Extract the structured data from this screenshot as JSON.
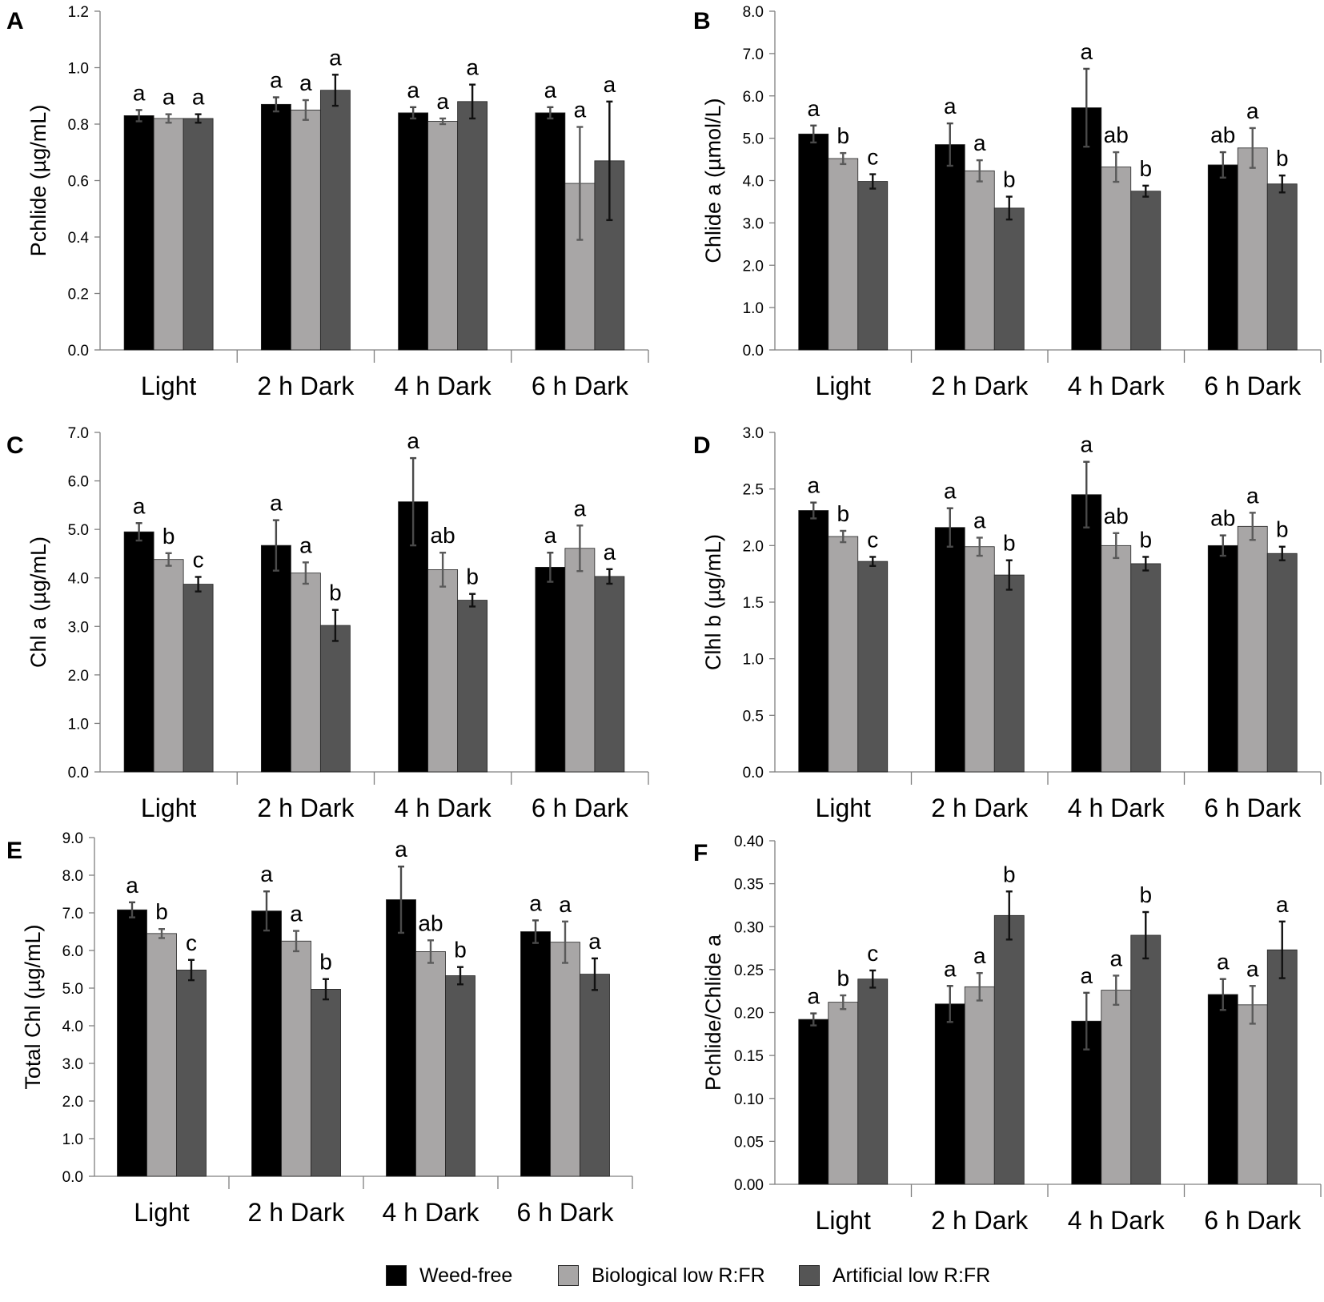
{
  "legend": {
    "series": [
      {
        "name": "Weed-free",
        "color": "#000000",
        "error_color": "#4a4a4a"
      },
      {
        "name": "Biological low R:FR",
        "color": "#a8a6a6",
        "error_color": "#5a5a5a"
      },
      {
        "name": "Artificial low R:FR",
        "color": "#555555",
        "error_color": "#111111"
      }
    ]
  },
  "chart_data": [
    {
      "panel": "A",
      "type": "bar",
      "ylabel": "Pchlide (µg/mL)",
      "categories": [
        "Light",
        "2 h Dark",
        "4 h Dark",
        "6 h Dark"
      ],
      "ylim": [
        0,
        1.2
      ],
      "yticks": [
        "0.0",
        "0.2",
        "0.4",
        "0.6",
        "0.8",
        "1.0",
        "1.2"
      ],
      "series": [
        {
          "name": "Weed-free",
          "values": [
            0.83,
            0.87,
            0.84,
            0.84
          ],
          "errors": [
            0.02,
            0.025,
            0.02,
            0.02
          ],
          "letters": [
            "a",
            "a",
            "a",
            "a"
          ]
        },
        {
          "name": "Biological low R:FR",
          "values": [
            0.82,
            0.85,
            0.81,
            0.59
          ],
          "errors": [
            0.015,
            0.035,
            0.01,
            0.2
          ],
          "letters": [
            "a",
            "a",
            "a",
            "a"
          ]
        },
        {
          "name": "Artificial low R:FR",
          "values": [
            0.82,
            0.92,
            0.88,
            0.67
          ],
          "errors": [
            0.015,
            0.055,
            0.06,
            0.21
          ],
          "letters": [
            "a",
            "a",
            "a",
            "a"
          ]
        }
      ]
    },
    {
      "panel": "B",
      "type": "bar",
      "ylabel": "Chlide a (µmol/L)",
      "categories": [
        "Light",
        "2 h Dark",
        "4 h Dark",
        "6 h Dark"
      ],
      "ylim": [
        0,
        8
      ],
      "yticks": [
        "0.0",
        "1.0",
        "2.0",
        "3.0",
        "4.0",
        "5.0",
        "6.0",
        "7.0",
        "8.0"
      ],
      "series": [
        {
          "name": "Weed-free",
          "values": [
            5.1,
            4.85,
            5.72,
            4.37
          ],
          "errors": [
            0.2,
            0.5,
            0.92,
            0.3
          ],
          "letters": [
            "a",
            "a",
            "a",
            "ab"
          ]
        },
        {
          "name": "Biological low R:FR",
          "values": [
            4.52,
            4.23,
            4.32,
            4.77
          ],
          "errors": [
            0.13,
            0.25,
            0.35,
            0.47
          ],
          "letters": [
            "b",
            "a",
            "ab",
            "a"
          ]
        },
        {
          "name": "Artificial low R:FR",
          "values": [
            3.98,
            3.35,
            3.75,
            3.92
          ],
          "errors": [
            0.17,
            0.27,
            0.13,
            0.2
          ],
          "letters": [
            "c",
            "b",
            "b",
            "b"
          ]
        }
      ]
    },
    {
      "panel": "C",
      "type": "bar",
      "ylabel": "Chl a (µg/mL)",
      "categories": [
        "Light",
        "2 h Dark",
        "4 h Dark",
        "6 h Dark"
      ],
      "ylim": [
        0,
        7
      ],
      "yticks": [
        "0.0",
        "1.0",
        "2.0",
        "3.0",
        "4.0",
        "5.0",
        "6.0",
        "7.0"
      ],
      "series": [
        {
          "name": "Weed-free",
          "values": [
            4.95,
            4.67,
            5.57,
            4.22
          ],
          "errors": [
            0.18,
            0.52,
            0.9,
            0.3
          ],
          "letters": [
            "a",
            "a",
            "a",
            "a"
          ]
        },
        {
          "name": "Biological low R:FR",
          "values": [
            4.38,
            4.1,
            4.17,
            4.61
          ],
          "errors": [
            0.13,
            0.22,
            0.35,
            0.47
          ],
          "letters": [
            "b",
            "a",
            "ab",
            "a"
          ]
        },
        {
          "name": "Artificial low R:FR",
          "values": [
            3.87,
            3.02,
            3.54,
            4.03
          ],
          "errors": [
            0.15,
            0.32,
            0.13,
            0.15
          ],
          "letters": [
            "c",
            "b",
            "b",
            "a"
          ]
        }
      ]
    },
    {
      "panel": "D",
      "type": "bar",
      "ylabel": "Clhl b (µg/mL)",
      "categories": [
        "Light",
        "2 h Dark",
        "4 h Dark",
        "6 h Dark"
      ],
      "ylim": [
        0,
        3
      ],
      "yticks": [
        "0.0",
        "0.5",
        "1.0",
        "1.5",
        "2.0",
        "2.5",
        "3.0"
      ],
      "series": [
        {
          "name": "Weed-free",
          "values": [
            2.31,
            2.16,
            2.45,
            2.0
          ],
          "errors": [
            0.07,
            0.17,
            0.29,
            0.09
          ],
          "letters": [
            "a",
            "a",
            "a",
            "ab"
          ]
        },
        {
          "name": "Biological low R:FR",
          "values": [
            2.08,
            1.99,
            2.0,
            2.17
          ],
          "errors": [
            0.05,
            0.08,
            0.11,
            0.12
          ],
          "letters": [
            "b",
            "a",
            "ab",
            "a"
          ]
        },
        {
          "name": "Artificial low R:FR",
          "values": [
            1.86,
            1.74,
            1.84,
            1.93
          ],
          "errors": [
            0.04,
            0.13,
            0.06,
            0.06
          ],
          "letters": [
            "c",
            "b",
            "b",
            "b"
          ]
        }
      ]
    },
    {
      "panel": "E",
      "type": "bar",
      "ylabel": "Total Chl (µg/mL)",
      "categories": [
        "Light",
        "2 h Dark",
        "4 h Dark",
        "6 h Dark"
      ],
      "ylim": [
        0,
        9
      ],
      "yticks": [
        "0.0",
        "1.0",
        "2.0",
        "3.0",
        "4.0",
        "5.0",
        "6.0",
        "7.0",
        "8.0",
        "9.0"
      ],
      "series": [
        {
          "name": "Weed-free",
          "values": [
            7.08,
            7.05,
            7.35,
            6.5
          ],
          "errors": [
            0.2,
            0.52,
            0.88,
            0.3
          ],
          "letters": [
            "a",
            "a",
            "a",
            "a"
          ]
        },
        {
          "name": "Biological low R:FR",
          "values": [
            6.45,
            6.25,
            5.97,
            6.22
          ],
          "errors": [
            0.12,
            0.27,
            0.3,
            0.55
          ],
          "letters": [
            "b",
            "a",
            "ab",
            "a"
          ]
        },
        {
          "name": "Artificial low R:FR",
          "values": [
            5.48,
            4.97,
            5.33,
            5.37
          ],
          "errors": [
            0.27,
            0.27,
            0.23,
            0.42
          ],
          "letters": [
            "c",
            "b",
            "b",
            "a"
          ]
        }
      ]
    },
    {
      "panel": "F",
      "type": "bar",
      "ylabel": "Pchlide/Chlide a",
      "categories": [
        "Light",
        "2 h Dark",
        "4 h Dark",
        "6 h Dark"
      ],
      "ylim": [
        0,
        0.4
      ],
      "yticks": [
        "0.00",
        "0.05",
        "0.10",
        "0.15",
        "0.20",
        "0.25",
        "0.30",
        "0.35",
        "0.40"
      ],
      "series": [
        {
          "name": "Weed-free",
          "values": [
            0.192,
            0.21,
            0.19,
            0.221
          ],
          "errors": [
            0.007,
            0.021,
            0.033,
            0.018
          ],
          "letters": [
            "a",
            "a",
            "a",
            "a"
          ]
        },
        {
          "name": "Biological low R:FR",
          "values": [
            0.212,
            0.23,
            0.226,
            0.209
          ],
          "errors": [
            0.008,
            0.016,
            0.017,
            0.022
          ],
          "letters": [
            "b",
            "a",
            "a",
            "a"
          ]
        },
        {
          "name": "Artificial low R:FR",
          "values": [
            0.239,
            0.313,
            0.29,
            0.273
          ],
          "errors": [
            0.01,
            0.028,
            0.027,
            0.033
          ],
          "letters": [
            "c",
            "b",
            "b",
            "a"
          ]
        }
      ]
    }
  ]
}
